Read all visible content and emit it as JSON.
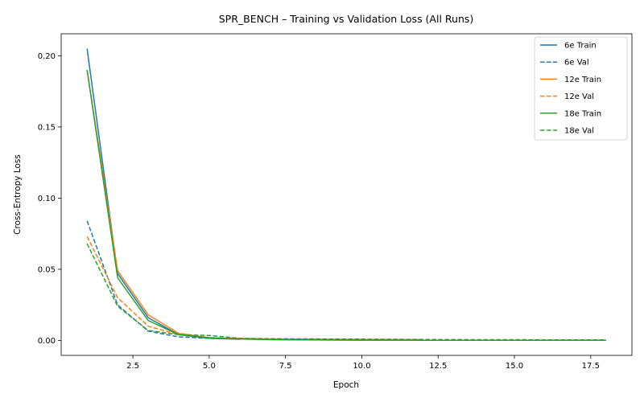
{
  "chart_data": {
    "type": "line",
    "title": "SPR_BENCH – Training vs Validation Loss (All Runs)",
    "xlabel": "Epoch",
    "ylabel": "Cross-Entropy Loss",
    "xlim": [
      0.15,
      18.85
    ],
    "ylim": [
      -0.0105,
      0.2155
    ],
    "xticks": [
      2.5,
      5.0,
      7.5,
      10.0,
      12.5,
      15.0,
      17.5
    ],
    "xtick_labels": [
      "2.5",
      "5.0",
      "7.5",
      "10.0",
      "12.5",
      "15.0",
      "17.5"
    ],
    "yticks": [
      0.0,
      0.05,
      0.1,
      0.15,
      0.2
    ],
    "ytick_labels": [
      "0.00",
      "0.05",
      "0.10",
      "0.15",
      "0.20"
    ],
    "grid": false,
    "legend_position": "top-right",
    "series": [
      {
        "name": "6e Train",
        "color": "#1f77b4",
        "dash": "solid",
        "x": [
          1,
          2,
          3,
          4,
          5,
          6
        ],
        "y": [
          0.205,
          0.047,
          0.016,
          0.004,
          0.0015,
          0.0008
        ]
      },
      {
        "name": "6e Val",
        "color": "#1f77b4",
        "dash": "dashed",
        "x": [
          1,
          2,
          3,
          4,
          5,
          6
        ],
        "y": [
          0.084,
          0.025,
          0.0065,
          0.0025,
          0.0015,
          0.001
        ]
      },
      {
        "name": "12e Train",
        "color": "#ff7f0e",
        "dash": "solid",
        "x": [
          1,
          2,
          3,
          4,
          5,
          6,
          7,
          8,
          9,
          10,
          11,
          12
        ],
        "y": [
          0.19,
          0.049,
          0.018,
          0.005,
          0.002,
          0.001,
          0.0006,
          0.0004,
          0.0003,
          0.0002,
          0.0002,
          0.0001
        ]
      },
      {
        "name": "12e Val",
        "color": "#ff7f0e",
        "dash": "dashed",
        "x": [
          1,
          2,
          3,
          4,
          5,
          6,
          7,
          8,
          9,
          10,
          11,
          12
        ],
        "y": [
          0.073,
          0.03,
          0.01,
          0.004,
          0.002,
          0.0015,
          0.001,
          0.0009,
          0.0008,
          0.0007,
          0.0006,
          0.0006
        ]
      },
      {
        "name": "18e Train",
        "color": "#2ca02c",
        "dash": "solid",
        "x": [
          1,
          2,
          3,
          4,
          5,
          6,
          7,
          8,
          9,
          10,
          11,
          12,
          13,
          14,
          15,
          16,
          17,
          18
        ],
        "y": [
          0.19,
          0.044,
          0.014,
          0.004,
          0.0018,
          0.001,
          0.0006,
          0.0004,
          0.0003,
          0.0002,
          0.0002,
          0.0001,
          0.0001,
          0.0001,
          0.0001,
          0.0001,
          0.0001,
          0.0001
        ]
      },
      {
        "name": "18e Val",
        "color": "#2ca02c",
        "dash": "dashed",
        "x": [
          1,
          2,
          3,
          4,
          5,
          6,
          7,
          8,
          9,
          10,
          11,
          12,
          13,
          14,
          15,
          16,
          17,
          18
        ],
        "y": [
          0.068,
          0.024,
          0.007,
          0.004,
          0.0035,
          0.0015,
          0.0012,
          0.0011,
          0.001,
          0.0009,
          0.0008,
          0.0007,
          0.0006,
          0.0005,
          0.0005,
          0.0004,
          0.0004,
          0.0004
        ]
      }
    ]
  }
}
